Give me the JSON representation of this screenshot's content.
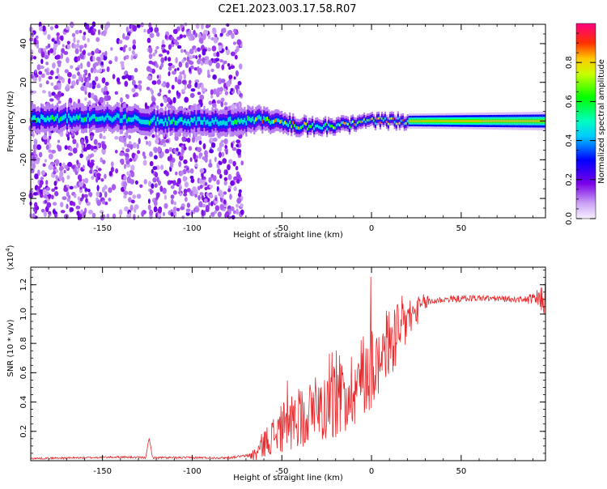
{
  "title": "C2E1.2023.003.17.58.R07",
  "chart_data": [
    {
      "type": "heatmap",
      "xlabel": "Height of straight line (km)",
      "ylabel": "Frequency (Hz)",
      "xlim": [
        -190,
        97
      ],
      "ylim": [
        -50,
        50
      ],
      "xticks": [
        -150,
        -100,
        -50,
        0,
        50
      ],
      "yticks": [
        -40,
        -20,
        0,
        20,
        40
      ],
      "colorbar": {
        "label": "Normalized spectral amplitude",
        "range": [
          0,
          1
        ],
        "ticks": [
          0.0,
          0.2,
          0.4,
          0.6,
          0.8
        ],
        "tick_labels": [
          "0.0",
          "0.2",
          "0.4",
          "0.6",
          "0.8"
        ]
      },
      "band_center_hz": [
        {
          "x": -185,
          "y": 1
        },
        {
          "x": -150,
          "y": 2
        },
        {
          "x": -120,
          "y": 0
        },
        {
          "x": -70,
          "y": 0
        },
        {
          "x": -60,
          "y": 1
        },
        {
          "x": -45,
          "y": -2
        },
        {
          "x": -30,
          "y": -3
        },
        {
          "x": -15,
          "y": -2
        },
        {
          "x": 0,
          "y": 0
        },
        {
          "x": 30,
          "y": 0
        },
        {
          "x": 97,
          "y": 0
        }
      ],
      "band_half_width_hz": [
        {
          "x": -185,
          "y": 6
        },
        {
          "x": -70,
          "y": 6
        },
        {
          "x": -40,
          "y": 4
        },
        {
          "x": 0,
          "y": 3
        },
        {
          "x": 97,
          "y": 4
        }
      ],
      "scatter_region_x": [
        -190,
        -72
      ]
    },
    {
      "type": "line",
      "xlabel": "Height of straight line (km)",
      "ylabel": "SNR (10 * v/v)",
      "y_multiplier": "(x10",
      "y_multiplier_exp": "4",
      "y_multiplier_close": ")",
      "xlim": [
        -190,
        97
      ],
      "ylim": [
        0,
        1.32
      ],
      "xticks": [
        -150,
        -100,
        -50,
        0,
        50
      ],
      "yticks": [
        0.2,
        0.4,
        0.6,
        0.8,
        1.0,
        1.2
      ],
      "ytick_labels": [
        "0.2",
        "0.4",
        "0.6",
        "0.8",
        "1.0",
        "1.2"
      ],
      "color": "#e8282b",
      "trend": [
        {
          "x": -190,
          "y": 0.015
        },
        {
          "x": -160,
          "y": 0.02
        },
        {
          "x": -140,
          "y": 0.025
        },
        {
          "x": -126,
          "y": 0.02
        },
        {
          "x": -124,
          "y": 0.15
        },
        {
          "x": -122,
          "y": 0.02
        },
        {
          "x": -100,
          "y": 0.02
        },
        {
          "x": -80,
          "y": 0.02
        },
        {
          "x": -65,
          "y": 0.04
        },
        {
          "x": -60,
          "y": 0.12
        },
        {
          "x": -50,
          "y": 0.22
        },
        {
          "x": -40,
          "y": 0.3
        },
        {
          "x": -30,
          "y": 0.35
        },
        {
          "x": -20,
          "y": 0.4
        },
        {
          "x": -10,
          "y": 0.5
        },
        {
          "x": 0,
          "y": 0.65
        },
        {
          "x": 10,
          "y": 0.8
        },
        {
          "x": 20,
          "y": 0.95
        },
        {
          "x": 30,
          "y": 1.08
        },
        {
          "x": 40,
          "y": 1.1
        },
        {
          "x": 60,
          "y": 1.11
        },
        {
          "x": 80,
          "y": 1.1
        },
        {
          "x": 90,
          "y": 1.1
        },
        {
          "x": 97,
          "y": 1.1
        }
      ],
      "noise_amplitude": [
        {
          "x": -190,
          "y": 0.006
        },
        {
          "x": -70,
          "y": 0.008
        },
        {
          "x": -62,
          "y": 0.08
        },
        {
          "x": -45,
          "y": 0.2
        },
        {
          "x": -20,
          "y": 0.25
        },
        {
          "x": 0,
          "y": 0.3
        },
        {
          "x": 15,
          "y": 0.25
        },
        {
          "x": 25,
          "y": 0.1
        },
        {
          "x": 35,
          "y": 0.025
        },
        {
          "x": 85,
          "y": 0.02
        },
        {
          "x": 92,
          "y": 0.06
        },
        {
          "x": 97,
          "y": 0.12
        }
      ]
    }
  ]
}
